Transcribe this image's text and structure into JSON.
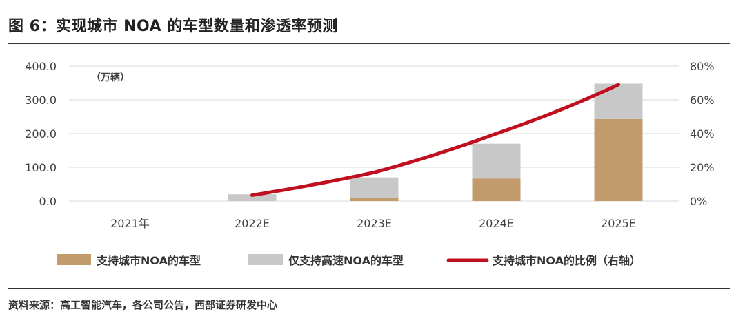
{
  "figure": {
    "title": "图 6：实现城市 NOA 的车型数量和渗透率预测",
    "source": "资料来源：高工智能汽车，各公司公告，西部证券研发中心"
  },
  "colors": {
    "urban_noa": "#C19B6C",
    "highway_only": "#C8C8C8",
    "ratio_line": "#C0101F",
    "grid": "#D9D9D9",
    "axis_text": "#404040"
  },
  "chart_data": {
    "type": "bar",
    "stacked": true,
    "categories": [
      "2021年",
      "2022E",
      "2023E",
      "2024E",
      "2025E"
    ],
    "unit_label": "（万辆）",
    "y_left": {
      "ylim": [
        0,
        400
      ],
      "ticks": [
        0,
        100,
        200,
        300,
        400
      ],
      "tick_labels": [
        "0.0",
        "100.0",
        "200.0",
        "300.0",
        "400.0"
      ]
    },
    "y_right": {
      "ylim": [
        0,
        80
      ],
      "ticks": [
        0,
        20,
        40,
        60,
        80
      ],
      "tick_labels": [
        "0%",
        "20%",
        "40%",
        "60%",
        "80%"
      ]
    },
    "series": [
      {
        "name": "支持城市NOA的车型",
        "kind": "bar",
        "axis": "left",
        "color": "#C19B6C",
        "values": [
          0,
          0,
          10,
          67,
          243
        ]
      },
      {
        "name": "仅支持高速NOA的车型",
        "kind": "bar",
        "axis": "left",
        "color": "#C8C8C8",
        "values": [
          0,
          20,
          60,
          103,
          105
        ]
      },
      {
        "name": "支持城市NOA的比例（右轴）",
        "kind": "line",
        "axis": "right",
        "color": "#C0101F",
        "values": [
          null,
          3.5,
          17,
          40,
          69
        ]
      }
    ],
    "grid": true,
    "legend": "bottom"
  }
}
